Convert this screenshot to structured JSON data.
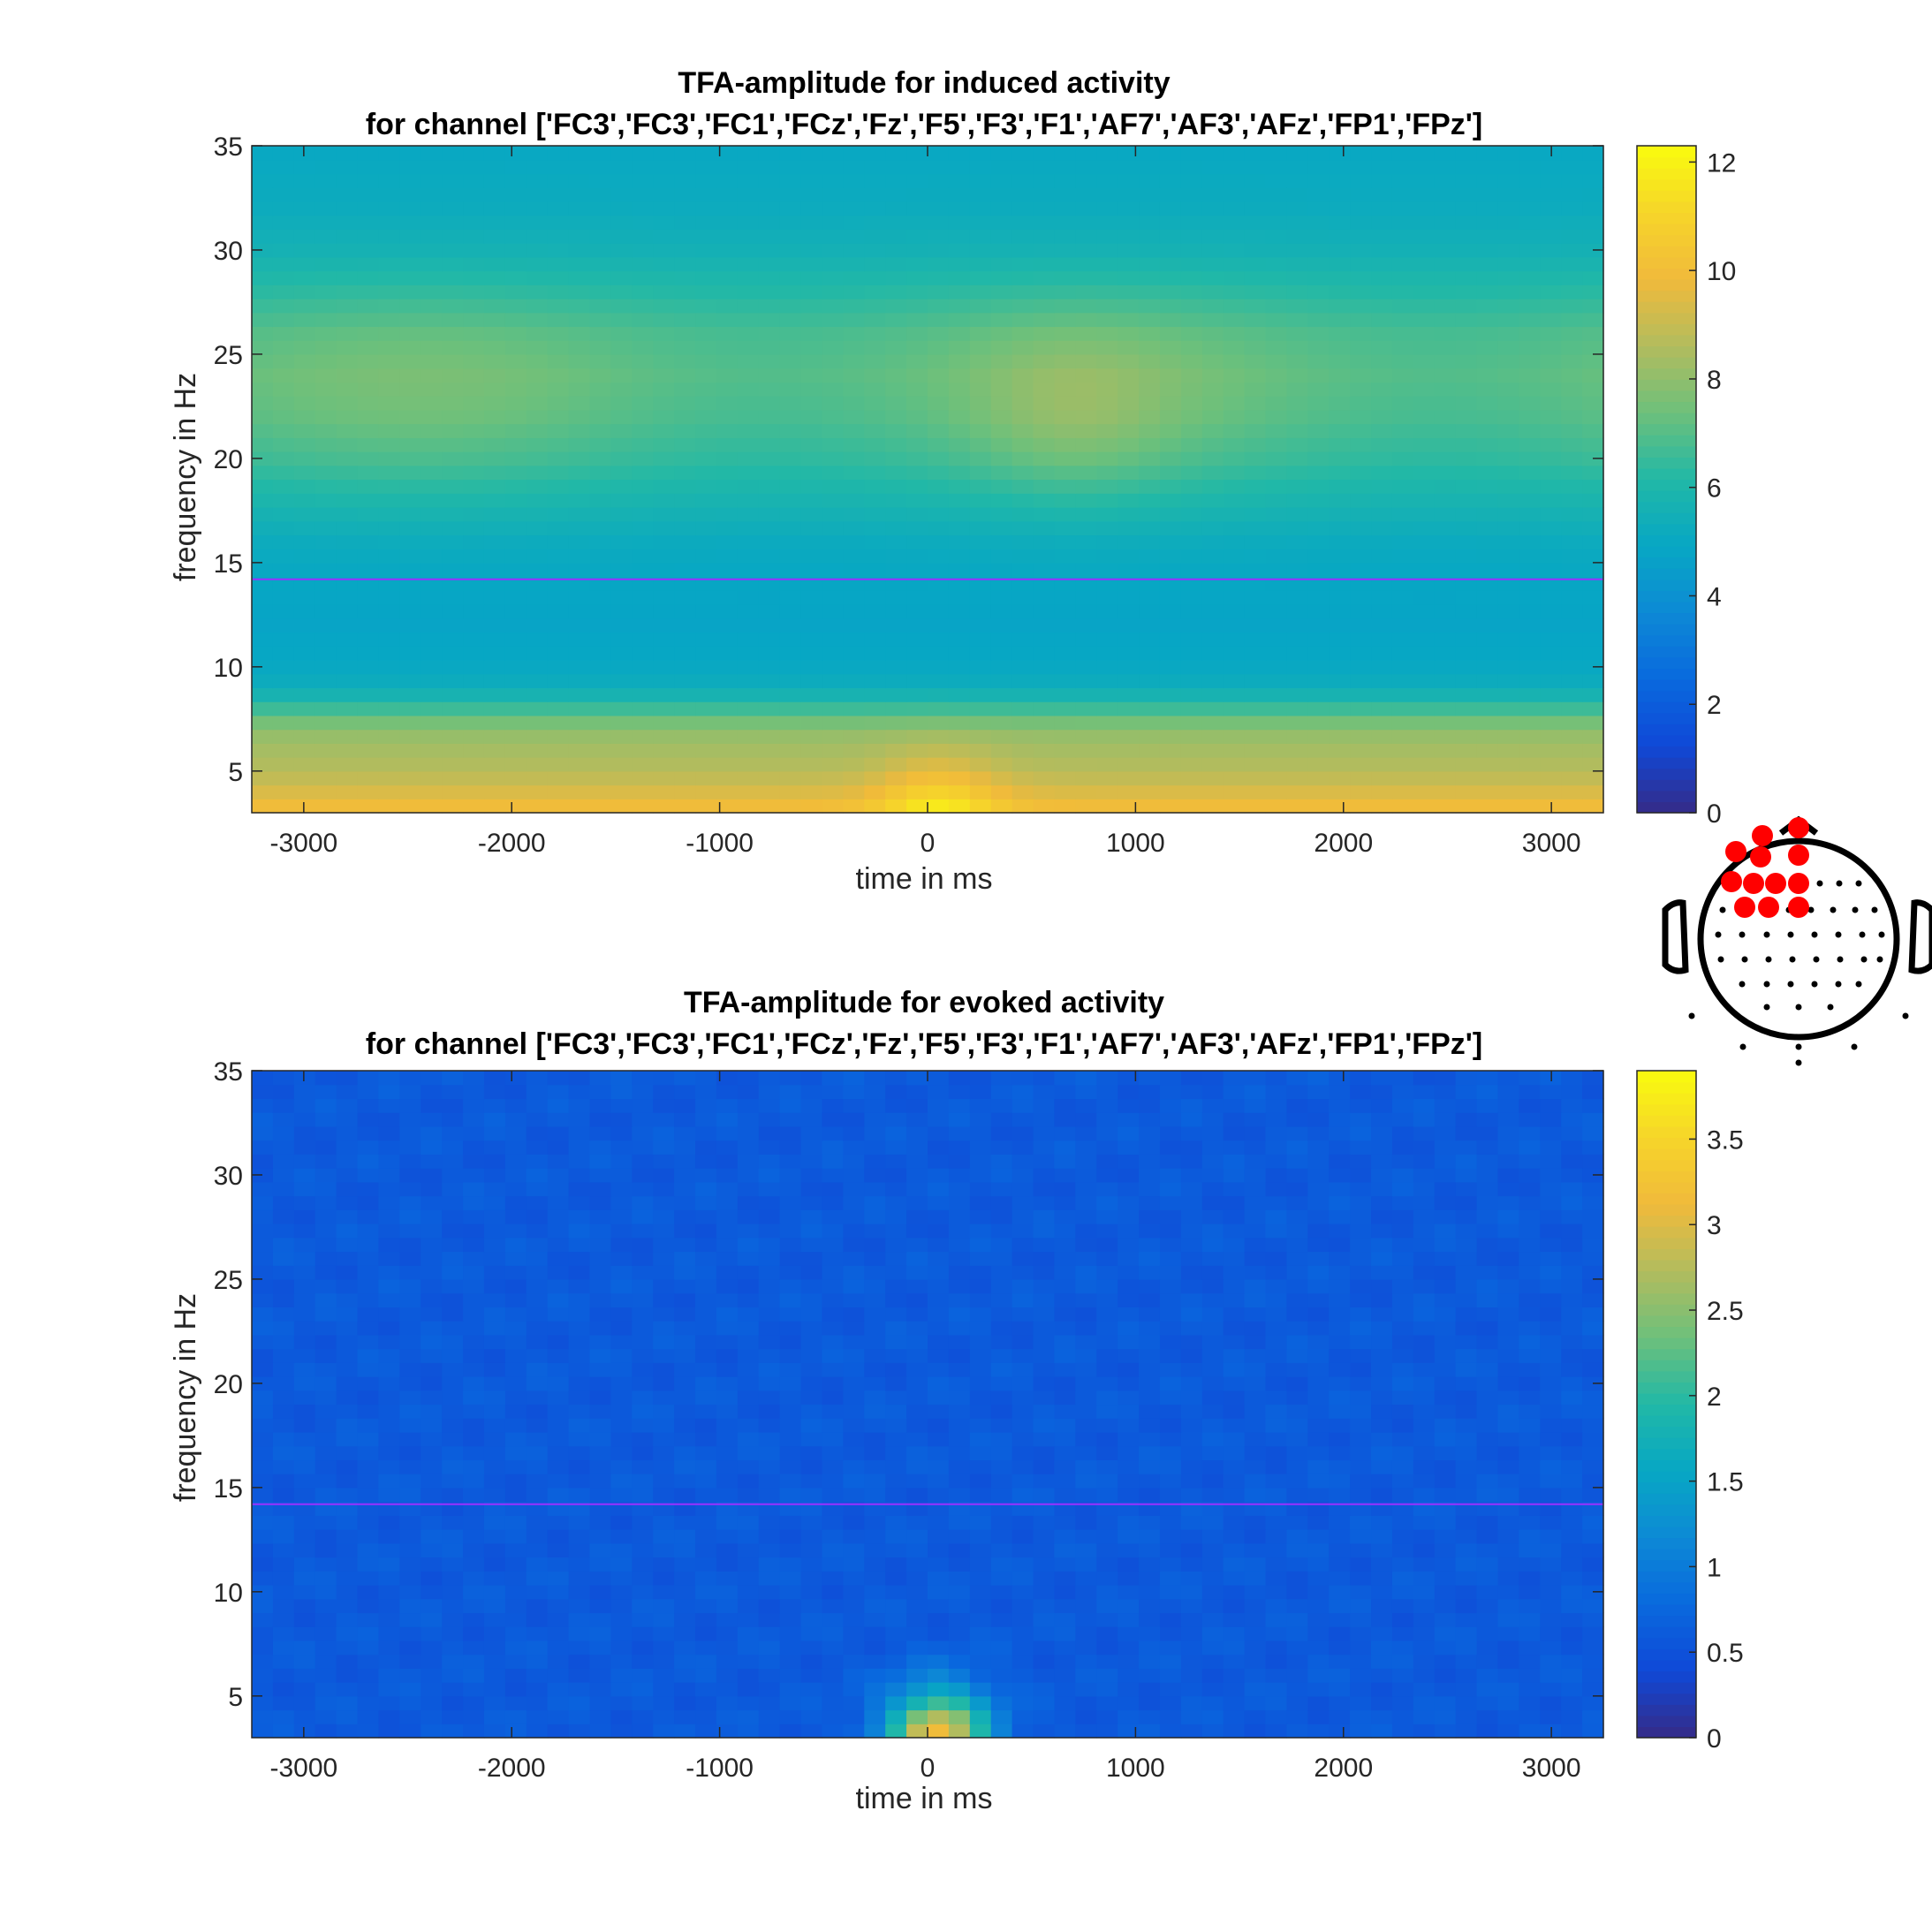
{
  "chart_data": [
    {
      "type": "heatmap",
      "title": "TFA-amplitude for induced activity",
      "subtitle": "for channel ['FC3','FC3','FC1','FCz','Fz','F5','F3','F1','AF7','AF3','AFz','FP1','FPz']",
      "xlabel": "time in ms",
      "ylabel": "frequency in Hz",
      "xlim": [
        -3250,
        3250
      ],
      "ylim": [
        3,
        35
      ],
      "xticks": [
        -3000,
        -2000,
        -1000,
        0,
        1000,
        2000,
        3000
      ],
      "yticks": [
        5,
        10,
        15,
        20,
        25,
        30,
        35
      ],
      "colorbar": {
        "min": 0,
        "max": 12.3,
        "ticks": [
          0,
          2,
          4,
          6,
          8,
          10,
          12
        ]
      },
      "reference_line_hz": 14.2,
      "reference_line_color": "#9b30ff",
      "colormap": "parula",
      "values_description": {
        "frequency_profile_hz": [
          3,
          4,
          5,
          6,
          7,
          8,
          9,
          10,
          12,
          14,
          16,
          18,
          20,
          22,
          24,
          26,
          28,
          30,
          32,
          35
        ],
        "amplitude_profile": [
          10.2,
          9.4,
          8.7,
          8.4,
          8.0,
          6.6,
          5.3,
          5.0,
          4.8,
          4.9,
          5.2,
          5.9,
          6.6,
          7.1,
          7.3,
          7.0,
          6.3,
          5.6,
          5.2,
          5.0
        ],
        "peak": {
          "time_ms": 50,
          "freq_hz": 3,
          "value": 12.0
        }
      }
    },
    {
      "type": "heatmap",
      "title": "TFA-amplitude for evoked activity",
      "subtitle": "for channel ['FC3','FC3','FC1','FCz','Fz','F5','F3','F1','AF7','AF3','AFz','FP1','FPz']",
      "xlabel": "time in ms",
      "ylabel": "frequency in Hz",
      "xlim": [
        -3250,
        3250
      ],
      "ylim": [
        3,
        35
      ],
      "xticks": [
        -3000,
        -2000,
        -1000,
        0,
        1000,
        2000,
        3000
      ],
      "yticks": [
        5,
        10,
        15,
        20,
        25,
        30,
        35
      ],
      "colorbar": {
        "min": 0,
        "max": 3.9,
        "ticks": [
          0,
          0.5,
          1,
          1.5,
          2,
          2.5,
          3,
          3.5
        ]
      },
      "reference_line_hz": 14.2,
      "reference_line_color": "#9b30ff",
      "colormap": "parula",
      "values_description": {
        "background_amplitude": 0.6,
        "peak": {
          "time_ms": 50,
          "freq_hz": 3,
          "value": 3.2
        }
      }
    }
  ],
  "head_map": {
    "selected_color": "#ff0000",
    "selected_count": 12
  }
}
